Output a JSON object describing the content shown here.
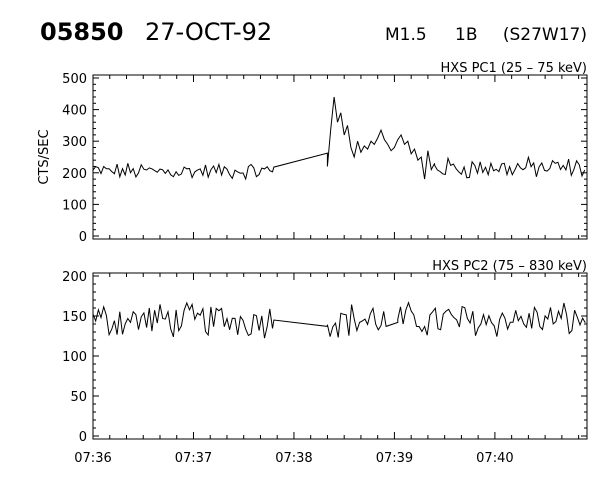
{
  "header": {
    "event_id": "05850",
    "date": "27-OCT-92",
    "goes_class": "M1.5",
    "optical_class": "1B",
    "location": "(S27W17)"
  },
  "colors": {
    "line": "#000000",
    "background": "#ffffff"
  },
  "chart_data": [
    {
      "type": "line",
      "title": "HXS PC1 (25 – 75 keV)",
      "ylabel": "CTS/SEC",
      "xlabel": "",
      "ylim": [
        0,
        500
      ],
      "yticks": [
        0,
        100,
        200,
        300,
        400,
        500
      ],
      "xlim": [
        "07:36:00",
        "07:40:55"
      ],
      "grid": false,
      "series": [
        {
          "x_start": "07:36:00",
          "x_end": "07:37:48",
          "base": 205,
          "amplitude": 22,
          "note": "fluctuating background"
        },
        {
          "x": [
            "07:37:48",
            "07:38:20"
          ],
          "values": [
            218,
            262
          ]
        },
        {
          "x": [
            "07:38:20",
            "07:38:22",
            "07:38:24",
            "07:38:26",
            "07:38:28",
            "07:38:30",
            "07:38:32",
            "07:38:34",
            "07:38:36",
            "07:38:38",
            "07:38:40",
            "07:38:42",
            "07:38:44",
            "07:38:46",
            "07:38:48",
            "07:38:50",
            "07:38:52",
            "07:38:54",
            "07:38:56",
            "07:38:58",
            "07:39:00",
            "07:39:02",
            "07:39:04",
            "07:39:06",
            "07:39:08",
            "07:39:10",
            "07:39:12",
            "07:39:14",
            "07:39:16",
            "07:39:18",
            "07:39:20",
            "07:39:22",
            "07:39:24"
          ],
          "values": [
            220,
            340,
            440,
            360,
            390,
            320,
            350,
            280,
            250,
            300,
            265,
            285,
            275,
            300,
            290,
            310,
            335,
            305,
            290,
            270,
            280,
            305,
            320,
            290,
            300,
            260,
            275,
            240,
            250,
            180,
            270,
            210,
            230
          ]
        },
        {
          "x_start": "07:39:24",
          "x_end": "07:40:55",
          "base": 215,
          "amplitude": 28,
          "note": "fluctuating background"
        }
      ]
    },
    {
      "type": "line",
      "title": "HXS PC2 (75 – 830 keV)",
      "ylabel": "",
      "xlabel": "",
      "ylim": [
        0,
        200
      ],
      "yticks": [
        0,
        50,
        100,
        150,
        200
      ],
      "xlim": [
        "07:36:00",
        "07:40:55"
      ],
      "xticks": [
        "07:36",
        "07:37",
        "07:38",
        "07:39",
        "07:40"
      ],
      "grid": false,
      "series": [
        {
          "x_start": "07:36:00",
          "x_end": "07:37:48",
          "base": 145,
          "amplitude": 18,
          "note": "fluctuating background"
        },
        {
          "x": [
            "07:37:48",
            "07:38:20"
          ],
          "values": [
            145,
            137
          ]
        },
        {
          "x_start": "07:38:20",
          "x_end": "07:38:55",
          "base": 145,
          "amplitude": 18,
          "note": "fluctuating background"
        },
        {
          "x": [
            "07:38:55",
            "07:39:02"
          ],
          "values": [
            137,
            142
          ]
        },
        {
          "x_start": "07:39:02",
          "x_end": "07:40:55",
          "base": 145,
          "amplitude": 18,
          "note": "fluctuating background"
        }
      ]
    }
  ]
}
